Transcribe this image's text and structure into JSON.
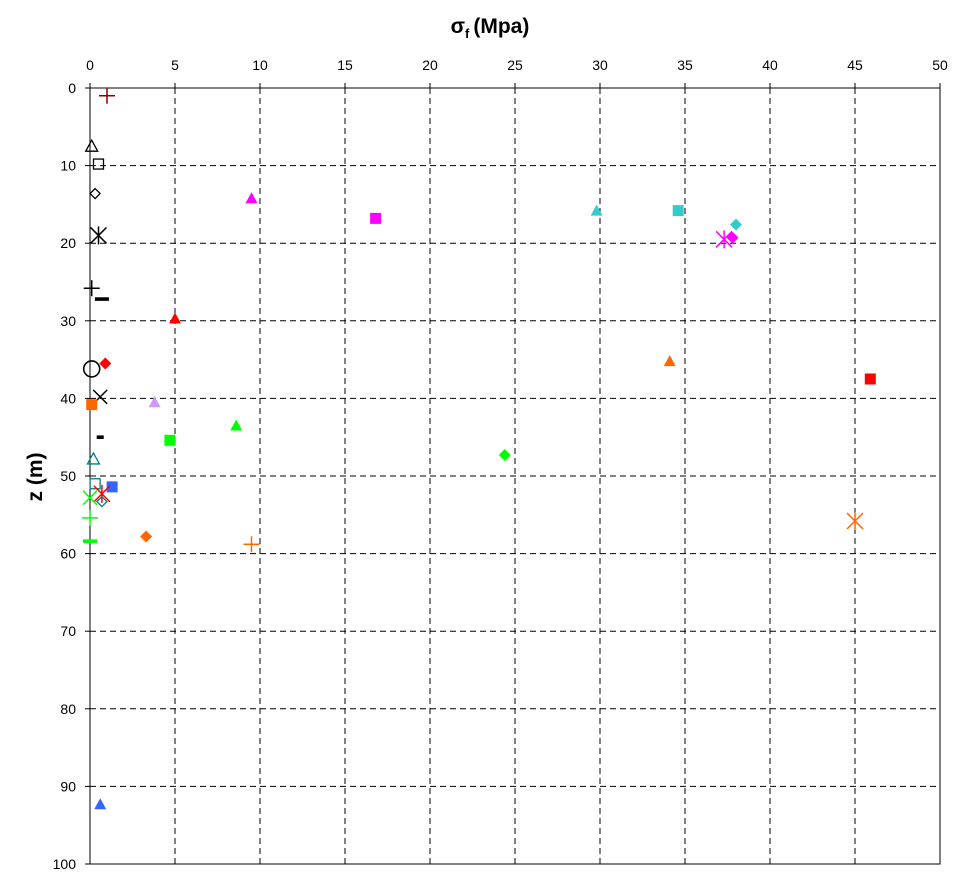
{
  "chart_data": {
    "type": "scatter",
    "title": "",
    "xlabel_main": "σ",
    "xlabel_sub": "f",
    "xlabel_unit": "(Mpa)",
    "ylabel": "z (m)",
    "xlim": [
      0,
      50
    ],
    "ylim": [
      0,
      100
    ],
    "x_ticks": [
      "0",
      "5",
      "10",
      "15",
      "20",
      "25",
      "30",
      "35",
      "40",
      "45",
      "50"
    ],
    "y_ticks": [
      "0",
      "10",
      "20",
      "30",
      "40",
      "50",
      "60",
      "70",
      "80",
      "90",
      "100"
    ],
    "x_axis_position": "top",
    "y_inverted": true,
    "grid": true,
    "legend": "none",
    "points": [
      {
        "x": 1.0,
        "y": 1.0,
        "marker": "plus",
        "color": "#8b0000"
      },
      {
        "x": 0.1,
        "y": 7.5,
        "marker": "triangle-open",
        "color": "#000000"
      },
      {
        "x": 0.5,
        "y": 9.8,
        "marker": "square-open",
        "color": "#000000"
      },
      {
        "x": 0.3,
        "y": 13.6,
        "marker": "diamond-open",
        "color": "#000000"
      },
      {
        "x": 0.5,
        "y": 19.0,
        "marker": "asterisk",
        "color": "#000000"
      },
      {
        "x": 0.1,
        "y": 25.8,
        "marker": "plus",
        "color": "#000000"
      },
      {
        "x": 0.7,
        "y": 27.2,
        "marker": "dash",
        "color": "#000000"
      },
      {
        "x": 0.1,
        "y": 36.2,
        "marker": "circle-open",
        "color": "#000000"
      },
      {
        "x": 0.6,
        "y": 39.8,
        "marker": "x",
        "color": "#000000"
      },
      {
        "x": 0.6,
        "y": 45.0,
        "marker": "dash-small",
        "color": "#000000"
      },
      {
        "x": 9.5,
        "y": 14.2,
        "marker": "triangle",
        "color": "#ff00ff"
      },
      {
        "x": 16.8,
        "y": 16.8,
        "marker": "square",
        "color": "#ff00ff"
      },
      {
        "x": 29.8,
        "y": 15.8,
        "marker": "triangle",
        "color": "#33cccc"
      },
      {
        "x": 34.6,
        "y": 15.8,
        "marker": "square",
        "color": "#33cccc"
      },
      {
        "x": 38.0,
        "y": 17.6,
        "marker": "diamond",
        "color": "#33cccc"
      },
      {
        "x": 37.8,
        "y": 19.3,
        "marker": "diamond",
        "color": "#ff00ff"
      },
      {
        "x": 37.3,
        "y": 19.5,
        "marker": "asterisk",
        "color": "#ff00ff"
      },
      {
        "x": 5.0,
        "y": 29.7,
        "marker": "triangle",
        "color": "#ff0000"
      },
      {
        "x": 0.9,
        "y": 35.5,
        "marker": "diamond",
        "color": "#ff0000"
      },
      {
        "x": 34.1,
        "y": 35.2,
        "marker": "triangle",
        "color": "#ff6600"
      },
      {
        "x": 45.9,
        "y": 37.5,
        "marker": "square",
        "color": "#ff0000"
      },
      {
        "x": 0.1,
        "y": 40.8,
        "marker": "square",
        "color": "#ff6600"
      },
      {
        "x": 3.8,
        "y": 40.5,
        "marker": "triangle",
        "color": "#cc99ff"
      },
      {
        "x": 8.6,
        "y": 43.5,
        "marker": "triangle",
        "color": "#00ff00"
      },
      {
        "x": 4.7,
        "y": 45.4,
        "marker": "square",
        "color": "#00ff00"
      },
      {
        "x": 24.4,
        "y": 47.3,
        "marker": "diamond",
        "color": "#00ff00"
      },
      {
        "x": 0.2,
        "y": 47.8,
        "marker": "triangle-open",
        "color": "#008080"
      },
      {
        "x": 0.3,
        "y": 51.0,
        "marker": "square-open",
        "color": "#008080"
      },
      {
        "x": 1.3,
        "y": 51.4,
        "marker": "square",
        "color": "#3366ff"
      },
      {
        "x": 0.7,
        "y": 52.3,
        "marker": "asterisk",
        "color": "#ff0000"
      },
      {
        "x": 0.0,
        "y": 52.8,
        "marker": "x",
        "color": "#00ff00"
      },
      {
        "x": 0.7,
        "y": 53.3,
        "marker": "diamond-open",
        "color": "#008080"
      },
      {
        "x": 0.0,
        "y": 55.4,
        "marker": "plus",
        "color": "#00ff00"
      },
      {
        "x": 3.3,
        "y": 57.8,
        "marker": "diamond",
        "color": "#ff6600"
      },
      {
        "x": 0.0,
        "y": 58.4,
        "marker": "dash",
        "color": "#00ff00"
      },
      {
        "x": 9.5,
        "y": 58.8,
        "marker": "plus",
        "color": "#ff6600"
      },
      {
        "x": 45.0,
        "y": 55.8,
        "marker": "asterisk",
        "color": "#ff6600"
      },
      {
        "x": 0.6,
        "y": 92.3,
        "marker": "triangle",
        "color": "#3366ff"
      }
    ]
  }
}
